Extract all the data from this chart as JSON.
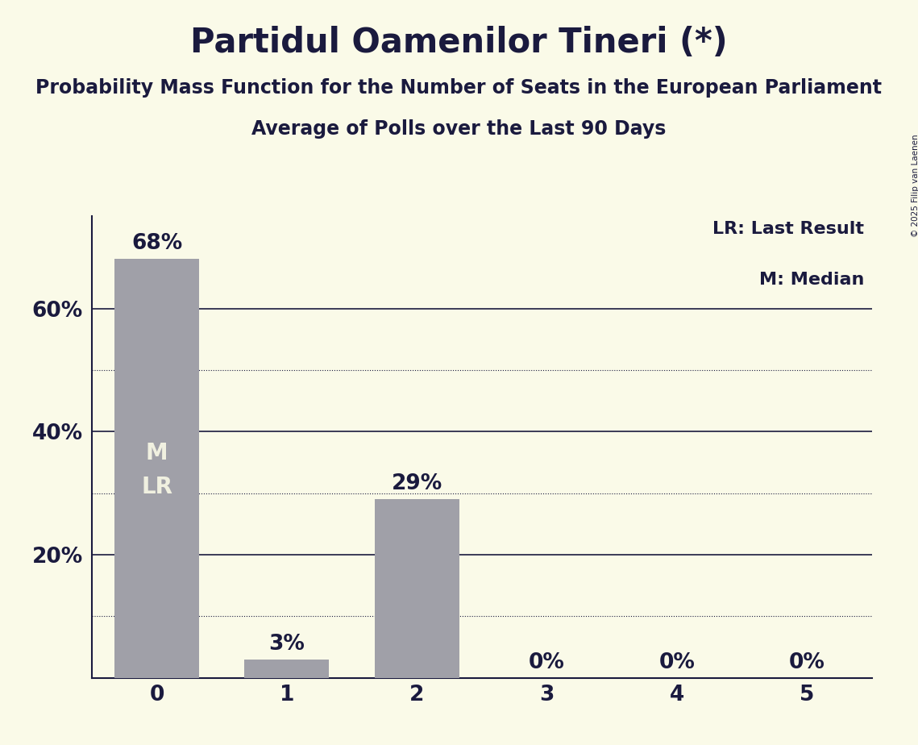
{
  "title": "Partidul Oamenilor Tineri (*)",
  "subtitle1": "Probability Mass Function for the Number of Seats in the European Parliament",
  "subtitle2": "Average of Polls over the Last 90 Days",
  "categories": [
    0,
    1,
    2,
    3,
    4,
    5
  ],
  "values": [
    0.68,
    0.03,
    0.29,
    0.0,
    0.0,
    0.0
  ],
  "bar_color": "#a0a0a8",
  "background_color": "#fafae8",
  "text_color": "#1a1a3e",
  "bar_label_color_above": "#1a1a3e",
  "bar_label_color_inside": "#f0f0e0",
  "ylabel_ticks": [
    0.0,
    0.2,
    0.4,
    0.6
  ],
  "ylabel_tick_labels": [
    "",
    "20%",
    "40%",
    "60%"
  ],
  "solid_gridlines": [
    0.2,
    0.4,
    0.6
  ],
  "dotted_gridlines": [
    0.1,
    0.3,
    0.5
  ],
  "legend_text1": "LR: Last Result",
  "legend_text2": "M: Median",
  "median_bar": 0,
  "lr_bar": 0,
  "copyright_text": "© 2025 Filip van Laenen",
  "title_fontsize": 30,
  "subtitle1_fontsize": 17,
  "subtitle2_fontsize": 17,
  "legend_fontsize": 16,
  "tick_fontsize": 19,
  "bar_label_fontsize": 19,
  "inside_label_fontsize": 20,
  "ylim": [
    0,
    0.75
  ]
}
